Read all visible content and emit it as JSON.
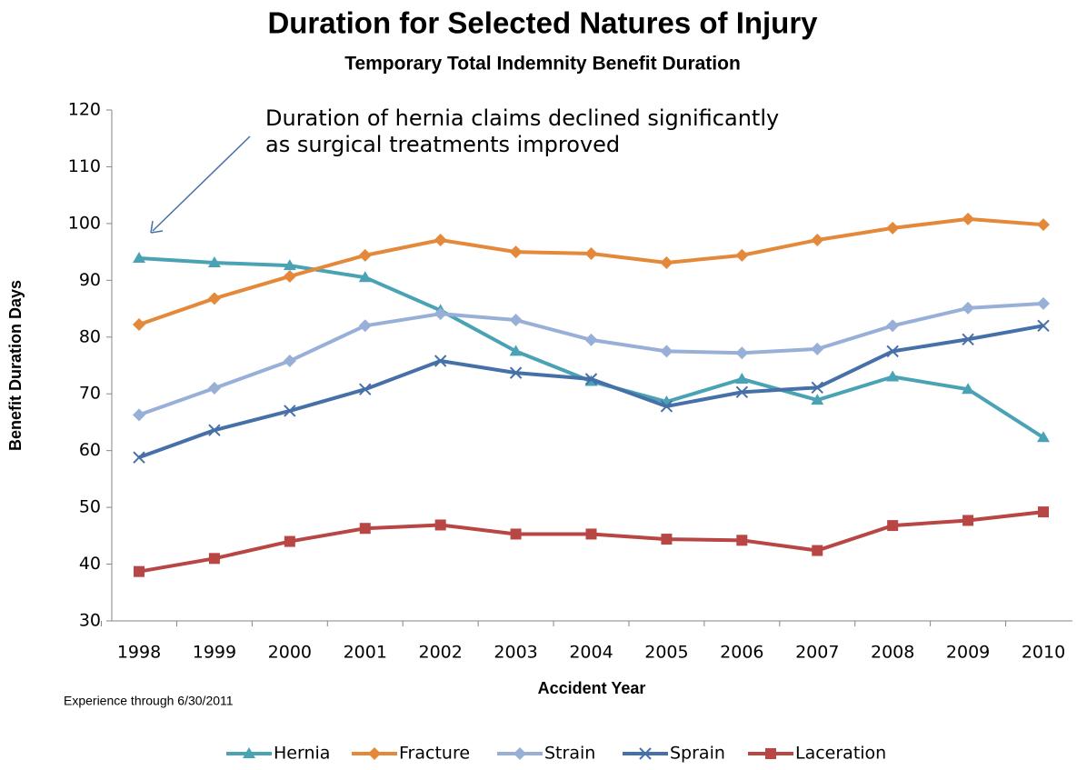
{
  "chart_data": {
    "type": "line",
    "title": "Duration for Selected Natures of Injury",
    "subtitle": "Temporary Total Indemnity Benefit Duration",
    "x_label": "Accident Year",
    "y_label": "Benefit Duration Days",
    "annotation": [
      "Duration of hernia claims declined significantly",
      "as surgical treatments improved"
    ],
    "footnote": "Experience through 6/30/2011",
    "categories": [
      "1998",
      "1999",
      "2000",
      "2001",
      "2002",
      "2003",
      "2004",
      "2005",
      "2006",
      "2007",
      "2008",
      "2009",
      "2010"
    ],
    "series": [
      {
        "name": "Hernia",
        "color": "#4aa3b5",
        "marker": "triangle",
        "values": [
          93.9,
          93.1,
          92.6,
          90.5,
          84.7,
          77.5,
          72.2,
          68.6,
          72.6,
          68.9,
          73.0,
          70.8,
          62.3
        ]
      },
      {
        "name": "Fracture",
        "color": "#e4883a",
        "marker": "diamond",
        "values": [
          82.2,
          86.8,
          90.7,
          94.4,
          97.1,
          95.0,
          94.7,
          93.1,
          94.4,
          97.1,
          99.2,
          100.8,
          99.8
        ]
      },
      {
        "name": "Strain",
        "color": "#98afd8",
        "marker": "diamond",
        "values": [
          66.3,
          71.0,
          75.8,
          82.0,
          84.1,
          83.0,
          79.5,
          77.5,
          77.2,
          77.9,
          82.0,
          85.1,
          85.9
        ]
      },
      {
        "name": "Sprain",
        "color": "#4670a8",
        "marker": "x",
        "values": [
          58.8,
          63.6,
          67.0,
          70.8,
          75.8,
          73.7,
          72.6,
          67.8,
          70.3,
          71.1,
          77.5,
          79.6,
          82.0
        ]
      },
      {
        "name": "Laceration",
        "color": "#b84644",
        "marker": "square",
        "values": [
          38.7,
          41.0,
          44.0,
          46.3,
          46.9,
          45.3,
          45.3,
          44.4,
          44.2,
          42.4,
          46.8,
          47.7,
          49.2
        ]
      }
    ],
    "ylim": [
      30,
      120
    ],
    "yticks": [
      30,
      40,
      50,
      60,
      70,
      80,
      90,
      100,
      110,
      120
    ],
    "grid": false,
    "legend": "bottom"
  }
}
